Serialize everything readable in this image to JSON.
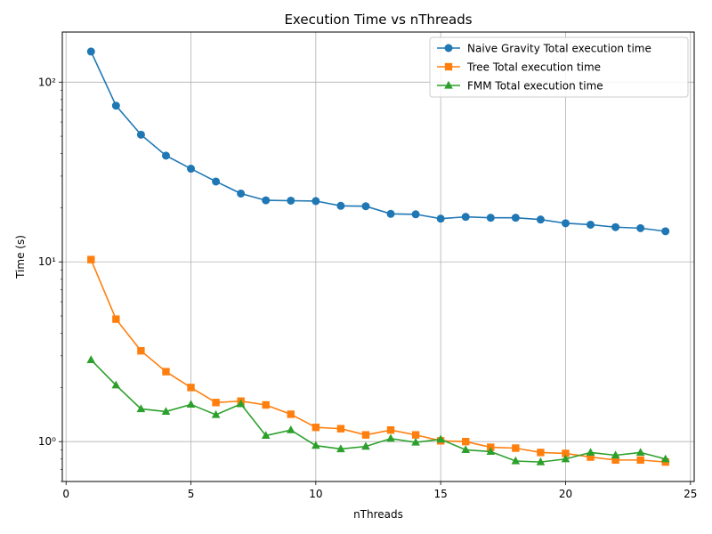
{
  "chart_data": {
    "type": "line",
    "title": "Execution Time vs nThreads",
    "xlabel": "nThreads",
    "ylabel": "Time (s)",
    "xlim": [
      -0.15,
      25.15
    ],
    "ylim": [
      0.6,
      190
    ],
    "yscale": "log",
    "grid": true,
    "legend_position": "top-right",
    "x_ticks": [
      0,
      5,
      10,
      15,
      20,
      25
    ],
    "x_tick_labels": [
      "0",
      "5",
      "10",
      "15",
      "20",
      "25"
    ],
    "y_ticks": [
      1,
      10,
      100
    ],
    "y_tick_labels": [
      "10⁰",
      "10¹",
      "10²"
    ],
    "x": [
      1,
      2,
      3,
      4,
      5,
      6,
      7,
      8,
      9,
      10,
      11,
      12,
      13,
      14,
      15,
      16,
      17,
      18,
      19,
      20,
      21,
      22,
      23,
      24
    ],
    "series": [
      {
        "name": "Naive Gravity Total execution time",
        "color": "#1f77b4",
        "marker": "circle",
        "values": [
          148,
          74,
          51,
          39,
          33,
          28,
          24,
          22,
          21.9,
          21.8,
          20.5,
          20.4,
          18.5,
          18.4,
          17.4,
          17.8,
          17.6,
          17.6,
          17.2,
          16.4,
          16.1,
          15.6,
          15.4,
          14.8
        ]
      },
      {
        "name": "Tree Total execution time",
        "color": "#ff7f0e",
        "marker": "square",
        "values": [
          10.3,
          4.8,
          3.2,
          2.45,
          2.0,
          1.65,
          1.68,
          1.6,
          1.42,
          1.2,
          1.18,
          1.09,
          1.16,
          1.09,
          1.01,
          1.0,
          0.93,
          0.92,
          0.87,
          0.86,
          0.82,
          0.79,
          0.79,
          0.77
        ]
      },
      {
        "name": "FMM Total execution time",
        "color": "#2ca02c",
        "marker": "triangle",
        "values": [
          2.85,
          2.06,
          1.52,
          1.47,
          1.61,
          1.41,
          1.62,
          1.08,
          1.16,
          0.95,
          0.91,
          0.94,
          1.04,
          0.99,
          1.03,
          0.9,
          0.88,
          0.78,
          0.77,
          0.8,
          0.87,
          0.84,
          0.87,
          0.8
        ]
      }
    ]
  }
}
